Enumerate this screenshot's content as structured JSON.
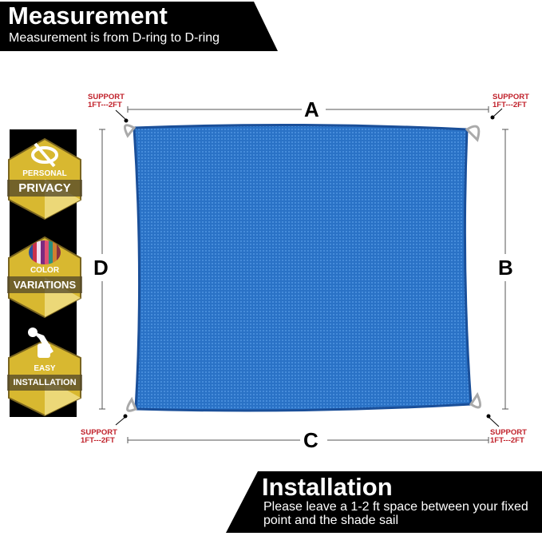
{
  "header": {
    "title": "Measurement",
    "subtitle": "Measurement is from D-ring to D-ring"
  },
  "footer": {
    "title": "Installation",
    "subtitle": "Please leave a 1-2 ft space between your fixed point and the shade sail"
  },
  "dimensions": {
    "top": "A",
    "right": "B",
    "bottom": "C",
    "left": "D"
  },
  "support": {
    "line1": "SUPPORT",
    "line2": "1FT---2FT"
  },
  "badges": [
    {
      "top": "PERSONAL",
      "main": "PRIVACY",
      "icon": "eye-slash-icon"
    },
    {
      "top": "COLOR",
      "main": "VARIATIONS",
      "icon": "color-stripes-icon"
    },
    {
      "top": "EASY",
      "main": "INSTALLATION",
      "icon": "wrench-hand-icon"
    }
  ],
  "colors": {
    "sail": "#2a72c6",
    "support_text": "#c0202a",
    "badge_gold": "#d8b830"
  }
}
